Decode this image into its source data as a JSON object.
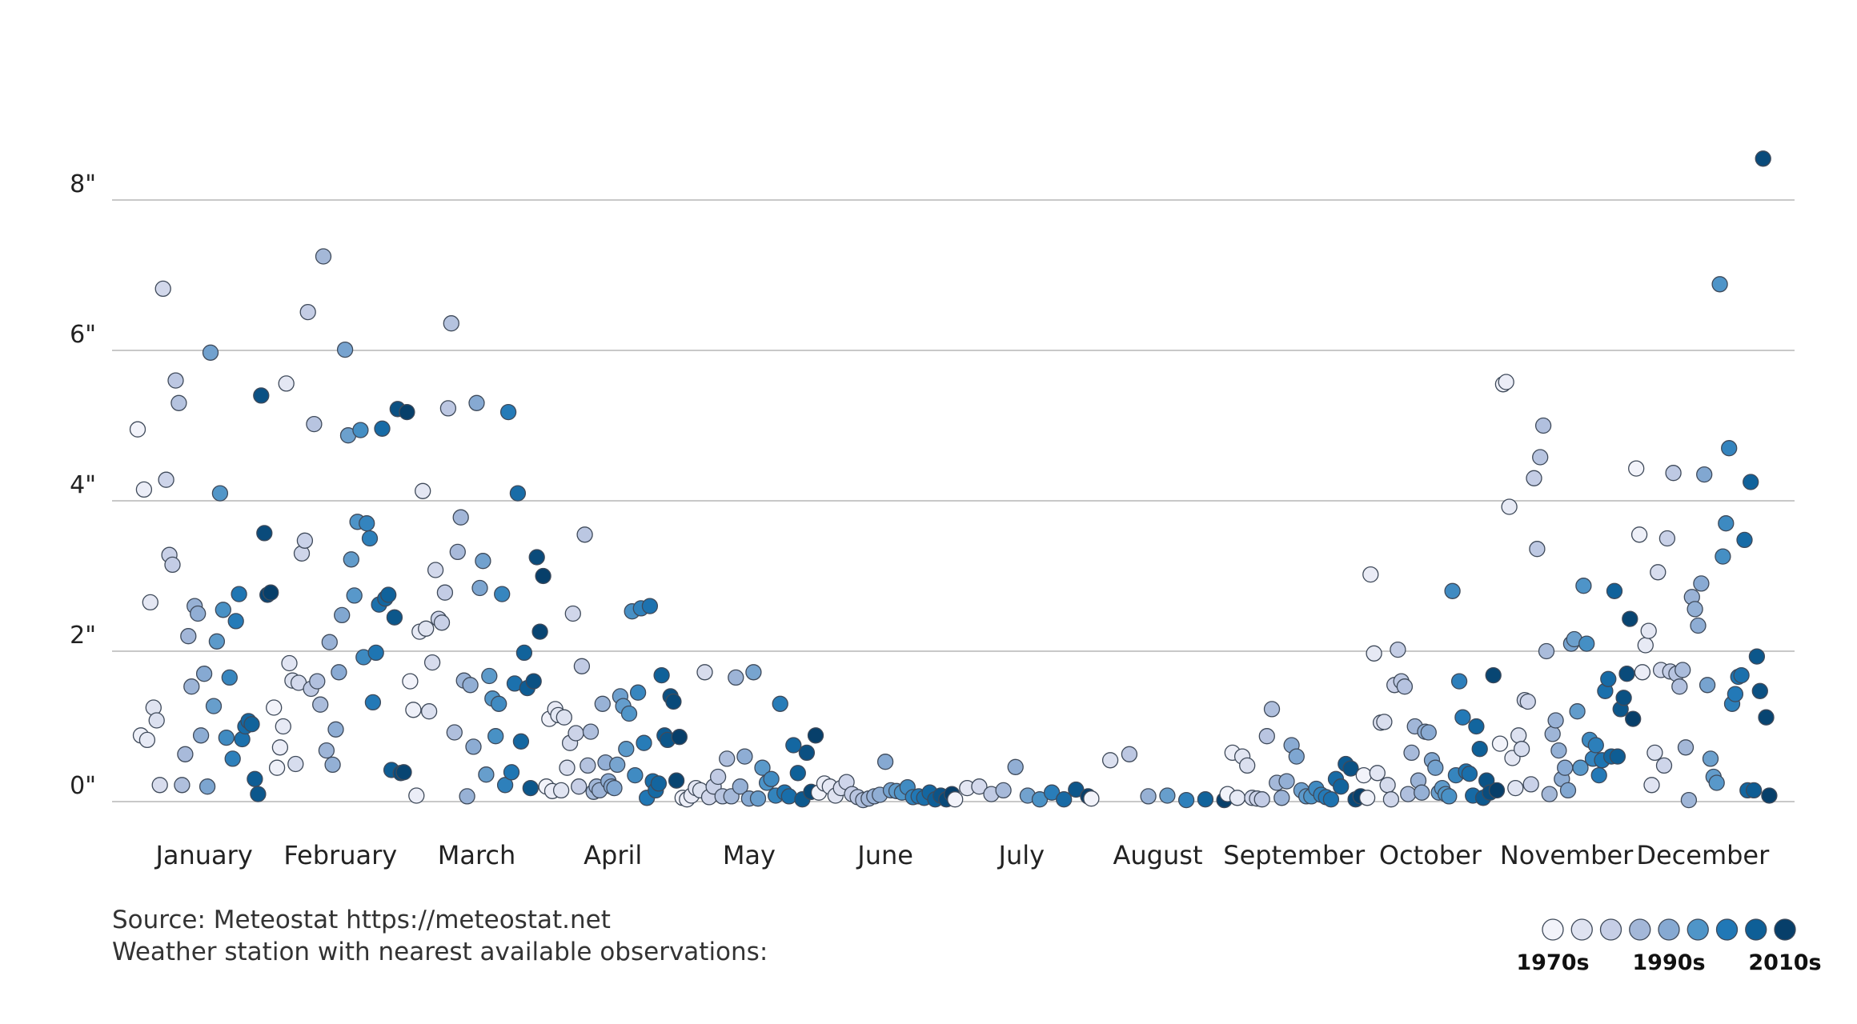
{
  "chart_data": {
    "type": "scatter",
    "title": "",
    "xlabel": "",
    "ylabel": "",
    "ylim": [
      0,
      8.6
    ],
    "y_ticks": [
      {
        "value": 0,
        "label": "0\""
      },
      {
        "value": 2,
        "label": "2\""
      },
      {
        "value": 4,
        "label": "4\""
      },
      {
        "value": 6,
        "label": "6\""
      },
      {
        "value": 8,
        "label": "8\""
      }
    ],
    "grid": true,
    "months": [
      "January",
      "February",
      "March",
      "April",
      "May",
      "June",
      "July",
      "August",
      "September",
      "October",
      "November",
      "December"
    ],
    "decade_colors": {
      "1970s": "#f2f3fa",
      "1975s": "#dfe3f1",
      "1980s": "#c6cee6",
      "1985s": "#a3b7d8",
      "1990s": "#86a9d2",
      "1995s": "#4f95c8",
      "2000s": "#2178b6",
      "2005s": "#0e5f97",
      "2010s": "#073f6a"
    },
    "legend": {
      "placement": "bottom-right",
      "swatches": [
        "1970s",
        "1975s",
        "1980s",
        "1985s",
        "1990s",
        "1995s",
        "2000s",
        "2005s",
        "2010s"
      ],
      "labels": [
        "1970s",
        "1990s",
        "2010s"
      ]
    },
    "series": [
      {
        "month": "January",
        "values": [
          4.95,
          0.88,
          4.15,
          0.82,
          2.65,
          1.25,
          1.08,
          0.22,
          6.82,
          4.28,
          3.28,
          3.15,
          5.6,
          5.3,
          0.22,
          0.63,
          2.2,
          1.53,
          2.6,
          2.5,
          0.88,
          1.7,
          0.2,
          5.97,
          1.27,
          2.13,
          4.1,
          2.55,
          0.85,
          1.65,
          0.57,
          2.4,
          2.76,
          0.83,
          1.0,
          1.07,
          1.03,
          0.3,
          0.1,
          5.4,
          3.57,
          2.75,
          2.78
        ]
      },
      {
        "month": "February",
        "values": [
          1.25,
          0.45,
          0.72,
          1.0,
          5.56,
          1.84,
          1.61,
          0.5,
          1.58,
          3.3,
          3.47,
          6.51,
          1.5,
          5.02,
          1.6,
          1.29,
          7.25,
          0.68,
          2.12,
          0.49,
          0.96,
          1.72,
          2.48,
          6.01,
          4.87,
          3.22,
          2.74,
          3.72,
          4.94,
          1.92,
          3.7,
          3.5,
          1.32,
          1.98,
          2.62,
          4.96,
          2.7,
          2.75,
          0.42,
          2.45,
          5.22,
          0.38,
          0.39,
          5.18
        ]
      },
      {
        "month": "March",
        "values": [
          1.6,
          1.22,
          0.08,
          2.26,
          4.13,
          2.3,
          1.2,
          1.85,
          3.08,
          2.43,
          2.38,
          2.78,
          5.23,
          6.36,
          0.92,
          3.32,
          3.78,
          1.61,
          0.07,
          1.55,
          0.73,
          5.3,
          2.84,
          3.2,
          0.36,
          1.67,
          1.37,
          0.87,
          1.3,
          2.76,
          0.22,
          5.18,
          0.39,
          1.57,
          4.1,
          0.8,
          1.98,
          1.51,
          0.18,
          1.6,
          3.25,
          2.26,
          3.0
        ]
      },
      {
        "month": "April",
        "values": [
          0.2,
          1.1,
          0.14,
          1.23,
          1.15,
          0.15,
          1.12,
          0.45,
          0.78,
          2.5,
          0.91,
          0.2,
          1.8,
          3.55,
          0.48,
          0.93,
          0.13,
          0.2,
          0.15,
          1.3,
          0.52,
          0.27,
          0.2,
          0.18,
          0.49,
          1.4,
          1.27,
          0.7,
          1.17,
          2.53,
          0.35,
          1.45,
          2.57,
          0.78,
          0.05,
          2.6,
          0.27,
          0.15,
          0.24,
          1.68,
          0.88,
          0.82,
          1.4,
          1.33,
          0.28,
          0.86
        ]
      },
      {
        "month": "May",
        "values": [
          0.05,
          0.03,
          0.08,
          0.18,
          0.15,
          1.72,
          0.06,
          0.2,
          0.33,
          0.07,
          0.57,
          0.07,
          1.65,
          0.2,
          0.6,
          0.04,
          1.72,
          0.04,
          0.45,
          0.25,
          0.3,
          0.08,
          1.3,
          0.12,
          0.07,
          0.75,
          0.38,
          0.03,
          0.65,
          0.13,
          0.88
        ]
      },
      {
        "month": "June",
        "values": [
          0.12,
          0.24,
          0.2,
          0.08,
          0.18,
          0.26,
          0.1,
          0.06,
          0.02,
          0.04,
          0.07,
          0.09,
          0.53,
          0.15,
          0.14,
          0.12,
          0.19,
          0.06,
          0.07,
          0.05,
          0.12,
          0.03,
          0.08,
          0.03,
          0.1
        ]
      },
      {
        "month": "July",
        "values": [
          0.03,
          0.18,
          0.2,
          0.1,
          0.15,
          0.46,
          0.08,
          0.03,
          0.12,
          0.03,
          0.16,
          0.07
        ]
      },
      {
        "month": "August",
        "values": [
          0.04,
          0.55,
          0.63,
          0.07,
          0.08,
          0.02,
          0.03,
          0.02
        ]
      },
      {
        "month": "September",
        "values": [
          0.1,
          0.65,
          0.05,
          0.6,
          0.48,
          0.05,
          0.04,
          0.03,
          0.87,
          1.23,
          0.25,
          0.05,
          0.27,
          0.75,
          0.6,
          0.15,
          0.07,
          0.07,
          0.17,
          0.09,
          0.06,
          0.03,
          0.3,
          0.2,
          0.5,
          0.44,
          0.03,
          0.07
        ]
      },
      {
        "month": "October",
        "values": [
          0.35,
          0.05,
          3.02,
          1.97,
          0.38,
          1.05,
          1.06,
          0.22,
          0.03,
          1.55,
          2.02,
          1.6,
          1.53,
          0.1,
          0.65,
          1.0,
          0.28,
          0.12,
          0.93,
          0.92,
          0.55,
          0.45,
          0.12,
          0.18,
          0.1,
          0.07,
          2.8,
          0.35,
          1.6,
          1.12,
          0.4,
          0.37,
          0.08,
          1.0,
          0.7,
          0.05,
          0.28,
          0.12,
          1.68,
          0.15
        ]
      },
      {
        "month": "November",
        "values": [
          0.77,
          5.55,
          5.58,
          3.92,
          0.58,
          0.18,
          0.88,
          0.7,
          1.35,
          1.33,
          0.23,
          4.3,
          3.36,
          4.58,
          5.0,
          2.0,
          0.1,
          0.9,
          1.08,
          0.68,
          0.3,
          0.45,
          0.15,
          2.1,
          2.16,
          1.2,
          0.45,
          2.87,
          2.1,
          0.82,
          0.57,
          0.75,
          0.35,
          0.55,
          1.47,
          1.63,
          0.6,
          2.8,
          0.6,
          1.23,
          1.38,
          1.7,
          2.43,
          1.1
        ]
      },
      {
        "month": "December",
        "values": [
          4.43,
          3.55,
          1.72,
          2.08,
          2.27,
          0.22,
          0.65,
          3.05,
          1.75,
          0.48,
          3.5,
          1.73,
          4.37,
          1.7,
          1.53,
          1.75,
          0.72,
          0.02,
          2.72,
          2.56,
          2.34,
          2.9,
          4.35,
          1.55,
          0.57,
          0.33,
          0.25,
          6.88,
          3.26,
          3.7,
          4.7,
          1.3,
          1.43,
          1.66,
          1.68,
          3.48,
          0.15,
          4.25,
          0.15,
          1.93,
          1.47,
          8.55,
          1.12,
          0.08
        ]
      }
    ]
  },
  "footer": {
    "source": "Source: Meteostat https://meteostat.net",
    "station": "Weather station with nearest available observations:"
  },
  "legend_labels": {
    "first": "1970s",
    "middle": "1990s",
    "last": "2010s"
  }
}
